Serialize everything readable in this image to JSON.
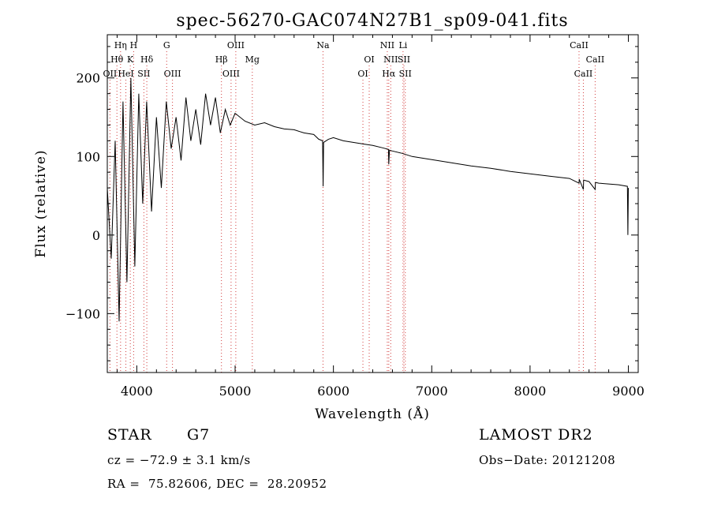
{
  "chart_data": {
    "type": "line",
    "title": "spec-56270-GAC074N27B1_sp09-041.fits",
    "xlabel": "Wavelength (Å)",
    "ylabel": "Flux (relative)",
    "xlim": [
      3700,
      9100
    ],
    "ylim": [
      -175,
      255
    ],
    "xticks": [
      4000,
      5000,
      6000,
      7000,
      8000,
      9000
    ],
    "yticks": [
      -100,
      0,
      100,
      200
    ],
    "ytick_labels": [
      "−100",
      "0",
      "100",
      "200"
    ],
    "grid": false,
    "series": [
      {
        "x": [
          3700,
          3740,
          3780,
          3820,
          3860,
          3900,
          3940,
          3980,
          4020,
          4060,
          4100,
          4150,
          4200,
          4250,
          4300,
          4350,
          4400,
          4450,
          4500,
          4550,
          4600,
          4650,
          4700,
          4750,
          4800,
          4850,
          4900,
          4950,
          5000,
          5100,
          5200,
          5300,
          5400,
          5500,
          5600,
          5700,
          5800,
          5850,
          5890,
          5895,
          5900,
          5950,
          6000,
          6100,
          6200,
          6300,
          6400,
          6500,
          6560,
          6563,
          6570,
          6600,
          6700,
          6800,
          6900,
          7000,
          7200,
          7400,
          7600,
          7800,
          8000,
          8200,
          8400,
          8498,
          8500,
          8542,
          8545,
          8600,
          8662,
          8665,
          8700,
          8800,
          8900,
          8990,
          8995,
          9000
        ],
        "y": [
          60,
          -30,
          120,
          -110,
          170,
          -60,
          200,
          -40,
          180,
          40,
          170,
          30,
          150,
          60,
          170,
          110,
          150,
          95,
          175,
          120,
          160,
          115,
          180,
          140,
          175,
          130,
          160,
          140,
          155,
          145,
          140,
          143,
          138,
          135,
          134,
          130,
          128,
          122,
          120,
          62,
          118,
          122,
          124,
          120,
          118,
          116,
          114,
          111,
          109,
          90,
          108,
          107,
          104,
          100,
          98,
          96,
          92,
          88,
          85,
          81,
          78,
          75,
          72,
          66,
          71,
          58,
          70,
          68,
          58,
          67,
          66,
          65,
          64,
          62,
          0,
          60
        ]
      }
    ],
    "lines": [
      {
        "label": "OII",
        "x": 3727,
        "row": 3
      },
      {
        "label": "Hθ",
        "x": 3798,
        "row": 2
      },
      {
        "label": "Hη",
        "x": 3835,
        "row": 1
      },
      {
        "label": "HeI",
        "x": 3889,
        "row": 3
      },
      {
        "label": "K",
        "x": 3934,
        "row": 2
      },
      {
        "label": "H",
        "x": 3968,
        "row": 1
      },
      {
        "label": "SII",
        "x": 4072,
        "row": 3
      },
      {
        "label": "Hδ",
        "x": 4102,
        "row": 2
      },
      {
        "label": "G",
        "x": 4304,
        "row": 1
      },
      {
        "label": "OIII",
        "x": 4363,
        "row": 3
      },
      {
        "label": "Hβ",
        "x": 4861,
        "row": 2
      },
      {
        "label": "OIII",
        "x": 4959,
        "row": 3
      },
      {
        "label": "OIII",
        "x": 5007,
        "row": 1
      },
      {
        "label": "Mg",
        "x": 5175,
        "row": 2
      },
      {
        "label": "Na",
        "x": 5894,
        "row": 1
      },
      {
        "label": "OI",
        "x": 6300,
        "row": 3
      },
      {
        "label": "OI",
        "x": 6364,
        "row": 2
      },
      {
        "label": "NII",
        "x": 6548,
        "row": 1
      },
      {
        "label": "Hα",
        "x": 6563,
        "row": 3
      },
      {
        "label": "NII",
        "x": 6583,
        "row": 2
      },
      {
        "label": "Li",
        "x": 6708,
        "row": 1
      },
      {
        "label": "SII",
        "x": 6717,
        "row": 2
      },
      {
        "label": "SII",
        "x": 6731,
        "row": 3
      },
      {
        "label": "CaII",
        "x": 8498,
        "row": 1
      },
      {
        "label": "CaII",
        "x": 8542,
        "row": 3
      },
      {
        "label": "CaII",
        "x": 8662,
        "row": 2
      }
    ],
    "colors": {
      "line": "#000000",
      "marker": "#d23c3c",
      "axes": "#000000"
    }
  },
  "info": {
    "class": "STAR",
    "subclass": "G7",
    "cz": "cz = −72.9 ± 3.1 km/s",
    "coords": "RA =  75.82606, DEC =  28.20952",
    "survey": "LAMOST DR2",
    "obsdate": "Obs−Date: 20121208"
  }
}
